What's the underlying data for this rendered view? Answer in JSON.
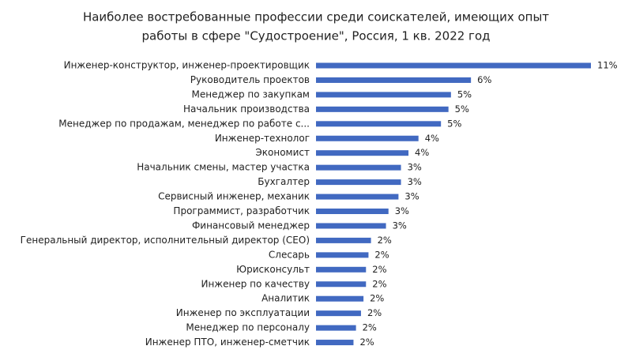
{
  "chart_data": {
    "type": "barh",
    "title": [
      "Наиболее востребованные профессии среди соискателей, имеющих опыт",
      "работы в сфере \"Судостроение\", Россия, 1 кв. 2022 год"
    ],
    "categories": [
      "Инженер-конструктор, инженер-проектировщик",
      "Руководитель проектов",
      "Менеджер по закупкам",
      "Начальник производства",
      "Менеджер по продажам, менеджер по работе с...",
      "Инженер-технолог",
      "Экономист",
      "Начальник смены, мастер участка",
      "Бухгалтер",
      "Сервисный инженер, механик",
      "Программист, разработчик",
      "Финансовый менеджер",
      "Генеральный директор, исполнительный директор (CEO)",
      "Слесарь",
      "Юрисконсульт",
      "Инженер по качеству",
      "Аналитик",
      "Инженер по эксплуатации",
      "Менеджер по персоналу",
      "Инженер ПТО, инженер-сметчик"
    ],
    "values": [
      11.0,
      6.2,
      5.4,
      5.3,
      5.0,
      4.1,
      3.7,
      3.4,
      3.4,
      3.3,
      2.9,
      2.8,
      2.2,
      2.1,
      2.0,
      2.0,
      1.9,
      1.8,
      1.6,
      1.5
    ],
    "value_labels": [
      "11%",
      "6%",
      "5%",
      "5%",
      "5%",
      "4%",
      "4%",
      "3%",
      "3%",
      "3%",
      "3%",
      "3%",
      "2%",
      "2%",
      "2%",
      "2%",
      "2%",
      "2%",
      "2%",
      "2%"
    ],
    "color": "#4169c1"
  }
}
